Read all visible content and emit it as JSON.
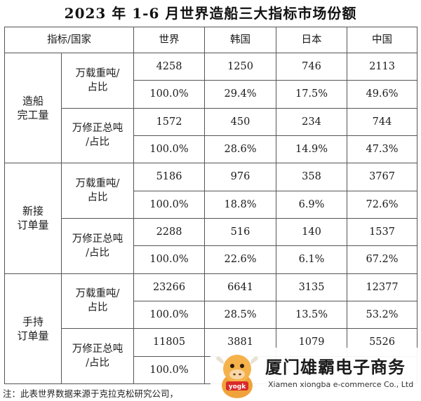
{
  "title": "2023 年 1-6 月世界造船三大指标市场份额",
  "header": {
    "indicator_country": "指标/国家",
    "world": "世界",
    "korea": "韩国",
    "japan": "日本",
    "china": "中国"
  },
  "sections": [
    {
      "category": [
        "造船",
        "完工量"
      ],
      "groups": [
        {
          "unit": [
            "万载重吨/",
            "占比"
          ],
          "values": [
            "4258",
            "1250",
            "746",
            "2113"
          ],
          "shares": [
            "100.0%",
            "29.4%",
            "17.5%",
            "49.6%"
          ]
        },
        {
          "unit": [
            "万修正总吨",
            "/占比"
          ],
          "values": [
            "1572",
            "450",
            "234",
            "744"
          ],
          "shares": [
            "100.0%",
            "28.6%",
            "14.9%",
            "47.3%"
          ]
        }
      ]
    },
    {
      "category": [
        "新接",
        "订单量"
      ],
      "groups": [
        {
          "unit": [
            "万载重吨/",
            "占比"
          ],
          "values": [
            "5186",
            "976",
            "358",
            "3767"
          ],
          "shares": [
            "100.0%",
            "18.8%",
            "6.9%",
            "72.6%"
          ]
        },
        {
          "unit": [
            "万修正总吨",
            "/占比"
          ],
          "values": [
            "2288",
            "516",
            "140",
            "1537"
          ],
          "shares": [
            "100.0%",
            "22.6%",
            "6.1%",
            "67.2%"
          ]
        }
      ]
    },
    {
      "category": [
        "手持",
        "订单量"
      ],
      "groups": [
        {
          "unit": [
            "万载重吨/",
            "占比"
          ],
          "values": [
            "23266",
            "6641",
            "3135",
            "12377"
          ],
          "shares": [
            "100.0%",
            "28.5%",
            "13.5%",
            "53.2%"
          ]
        },
        {
          "unit": [
            "万修正总吨",
            "/占比"
          ],
          "values": [
            "11805",
            "3881",
            "1079",
            "5526"
          ],
          "shares": [
            "100.0%",
            "",
            "",
            ""
          ]
        }
      ]
    }
  ],
  "note": "注：此表世界数据来源于克拉克松研究公司，",
  "watermark": {
    "company_cn": "厦门雄霸电子商务",
    "company_en": "Xiamen xiongba e-commerce Co., Ltd",
    "mascot_text": "yogk"
  }
}
